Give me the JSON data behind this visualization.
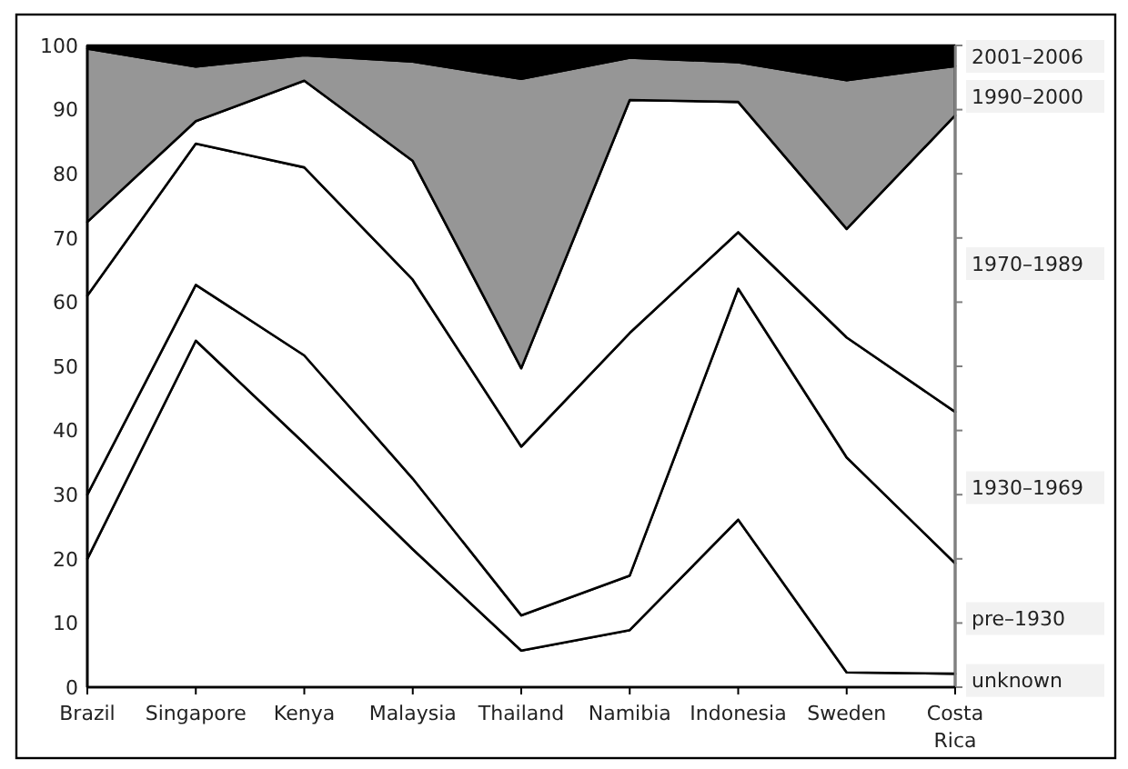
{
  "chart_data": {
    "type": "area",
    "stacked": true,
    "categories": [
      "Brazil",
      "Singapore",
      "Kenya",
      "Malaysia",
      "Thailand",
      "Namibia",
      "Indonesia",
      "Sweden",
      "Costa Rica"
    ],
    "ylim": [
      0,
      100
    ],
    "yticks": [
      0,
      10,
      20,
      30,
      40,
      50,
      60,
      70,
      80,
      90,
      100
    ],
    "legend": "right",
    "series": [
      {
        "name": "unknown",
        "color": "#ffffff",
        "values": [
          20,
          54,
          38,
          21.5,
          5.7,
          8.9,
          26.1,
          2.3,
          2.1
        ]
      },
      {
        "name": "pre–1930",
        "color": "#ffffff",
        "values": [
          10,
          8.7,
          13.7,
          11,
          5.5,
          8.5,
          36,
          33.5,
          17.2
        ]
      },
      {
        "name": "1930–1969",
        "color": "#ffffff",
        "values": [
          31,
          22,
          29.3,
          31,
          26.3,
          37.8,
          8.8,
          18.7,
          23.6
        ]
      },
      {
        "name": "1970–1989",
        "color": "#ffffff",
        "values": [
          11.5,
          3.5,
          13.5,
          18.5,
          12.2,
          36.3,
          20.3,
          16.9,
          46.2
        ]
      },
      {
        "name": "1990–2000",
        "color": "#969696",
        "values": [
          27,
          8.5,
          4,
          15.5,
          45.1,
          6.6,
          6.2,
          23.2,
          7.7
        ]
      },
      {
        "name": "2001–2006",
        "color": "#000000",
        "values": [
          0.5,
          3.3,
          1.5,
          2.5,
          5.2,
          1.9,
          2.6,
          5.4,
          3.2
        ]
      }
    ]
  }
}
